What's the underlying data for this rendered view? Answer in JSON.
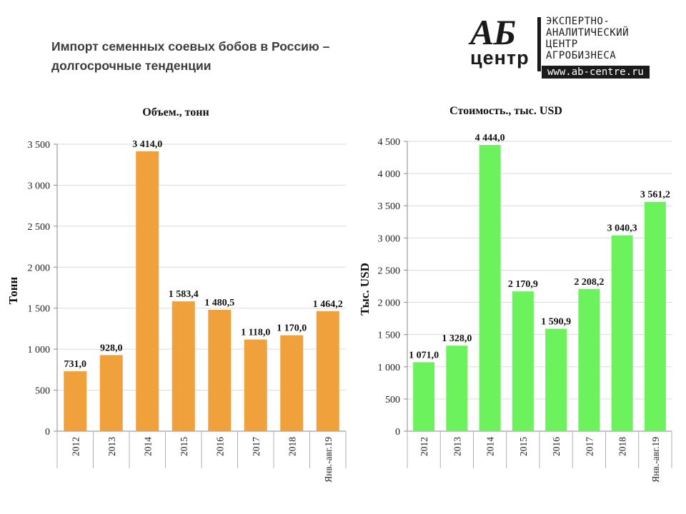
{
  "header": {
    "title_line1": "Импорт семенных соевых бобов в Россию –",
    "title_line2": "долгосрочные  тенденции"
  },
  "logo": {
    "mark": "АБ",
    "word": "центр",
    "text_lines": [
      "ЭКСПЕРТНО-",
      "АНАЛИТИЧЕСКИЙ",
      "ЦЕНТР",
      "АГРОБИЗНЕСА"
    ],
    "url": "www.ab-centre.ru"
  },
  "chart_data": [
    {
      "type": "bar",
      "title": "Объем., тонн",
      "xlabel": "",
      "ylabel": "Тонн",
      "categories": [
        "2012",
        "2013",
        "2014",
        "2015",
        "2016",
        "2017",
        "2018",
        "Янв.-авг.19"
      ],
      "values": [
        731.0,
        928.0,
        3414.0,
        1583.4,
        1480.5,
        1118.0,
        1170.0,
        1464.2
      ],
      "value_labels": [
        "731,0",
        "928,0",
        "3 414,0",
        "1 583,4",
        "1 480,5",
        "1 118,0",
        "1 170,0",
        "1 464,2"
      ],
      "ylim": [
        0,
        3500
      ],
      "yticks": [
        0,
        500,
        1000,
        1500,
        2000,
        2500,
        3000,
        3500
      ],
      "ytick_labels": [
        "0",
        "500",
        "1 000",
        "1 500",
        "2 000",
        "2 500",
        "3 000",
        "3 500"
      ],
      "grid": true,
      "color": "#F0A13B"
    },
    {
      "type": "bar",
      "title": "Стоимость., тыс. USD",
      "xlabel": "",
      "ylabel": "Тыс. USD",
      "categories": [
        "2012",
        "2013",
        "2014",
        "2015",
        "2016",
        "2017",
        "2018",
        "Янв.-авг.19"
      ],
      "values": [
        1071.0,
        1328.0,
        4444.0,
        2170.9,
        1590.9,
        2208.2,
        3040.3,
        3561.2
      ],
      "value_labels": [
        "1 071,0",
        "1 328,0",
        "4 444,0",
        "2 170,9",
        "1 590,9",
        "2 208,2",
        "3 040,3",
        "3 561,2"
      ],
      "ylim": [
        0,
        4500
      ],
      "yticks": [
        0,
        500,
        1000,
        1500,
        2000,
        2500,
        3000,
        3500,
        4000,
        4500
      ],
      "ytick_labels": [
        "0",
        "500",
        "1 000",
        "1 500",
        "2 000",
        "2 500",
        "3 000",
        "3 500",
        "4 000",
        "4 500"
      ],
      "grid": true,
      "color": "#6CF25C"
    }
  ]
}
